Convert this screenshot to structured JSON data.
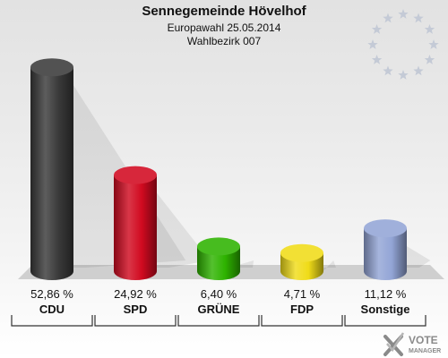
{
  "header": {
    "title": "Sennegemeinde Hövelhof",
    "election": "Europawahl 25.05.2014",
    "district": "Wahlbezirk 007"
  },
  "logo": {
    "line1": "VOTE",
    "line2": "MANAGER"
  },
  "icons": {
    "top_right": "eu-stars-icon",
    "bottom_right": "vote-manager-logo-icon"
  },
  "chart_data": {
    "type": "bar",
    "title": "Sennegemeinde Hövelhof",
    "subtitle": "Europawahl 25.05.2014 / Wahlbezirk 007",
    "categories": [
      "CDU",
      "SPD",
      "GRÜNE",
      "FDP",
      "Sonstige"
    ],
    "values": [
      52.86,
      24.92,
      6.4,
      4.71,
      11.12
    ],
    "value_labels": [
      "52,86 %",
      "24,92 %",
      "6,40 %",
      "4,71 %",
      "11,12 %"
    ],
    "colors": [
      "#3a3a3a",
      "#d10a20",
      "#2eb300",
      "#f0dc18",
      "#93a5d6"
    ],
    "unit": "%",
    "ylim": [
      0,
      55
    ],
    "grid": false
  }
}
